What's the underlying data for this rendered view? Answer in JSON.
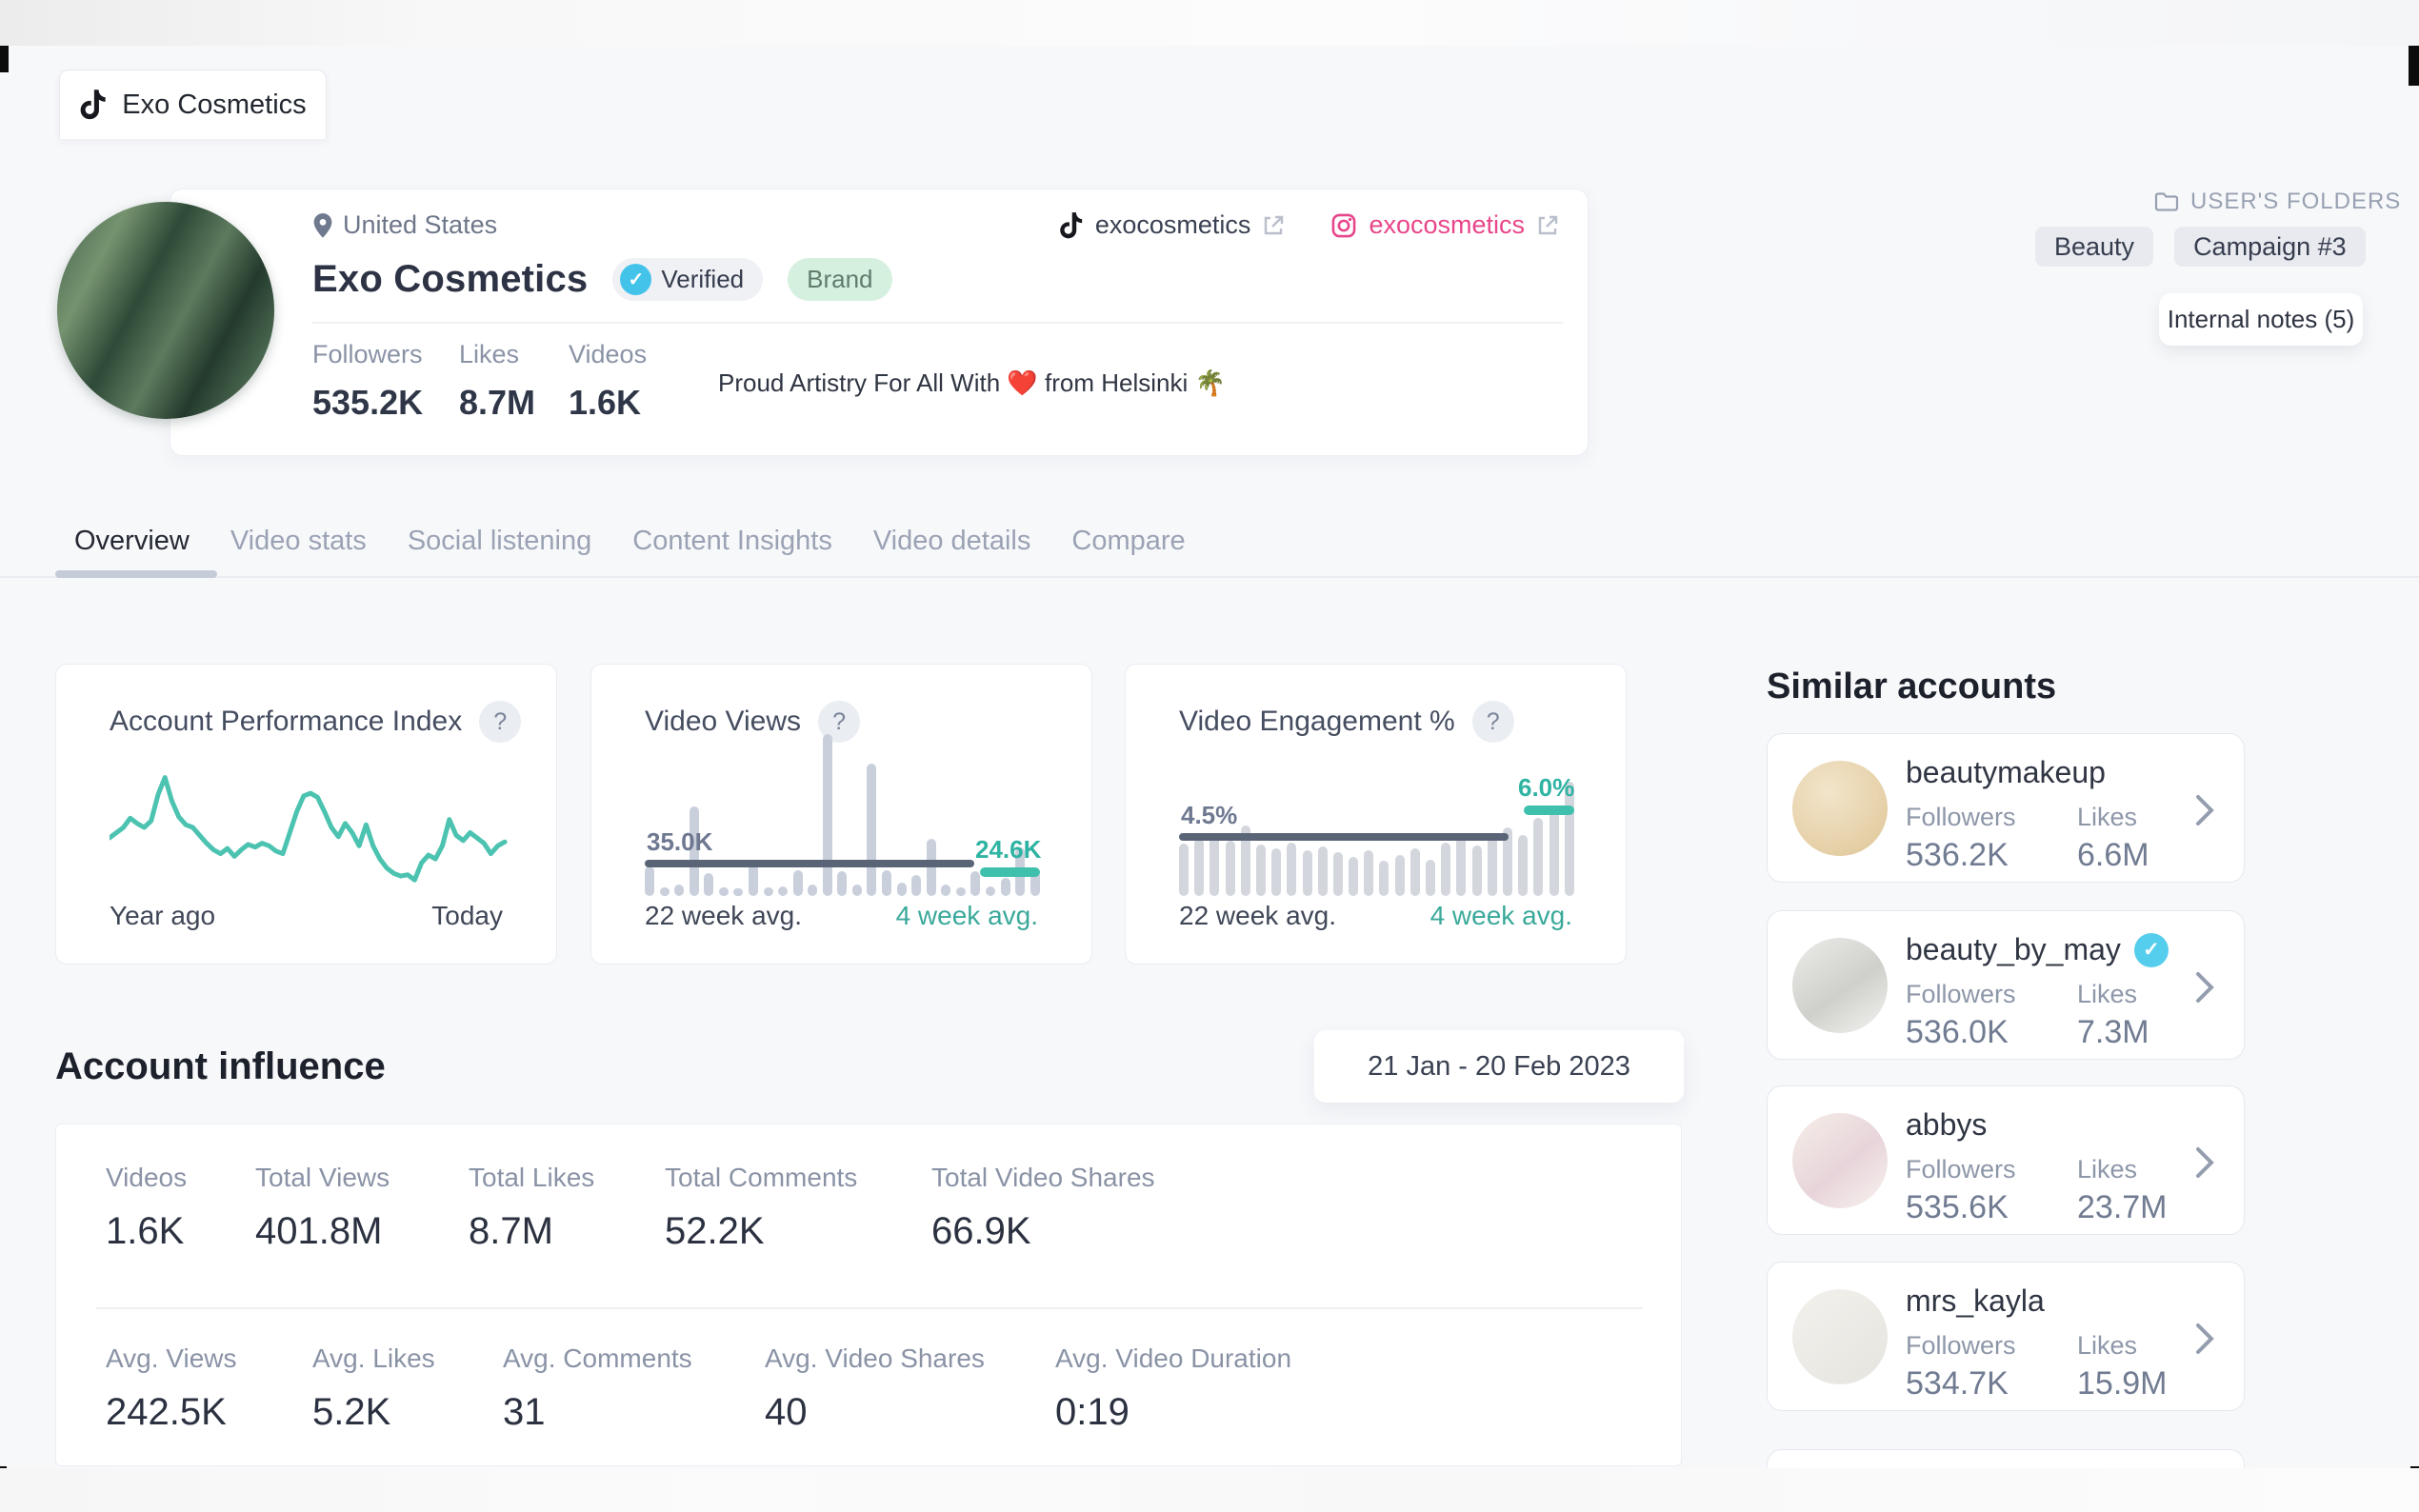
{
  "window": {
    "tab_title": "Exo Cosmetics"
  },
  "profile": {
    "location": "United States",
    "name": "Exo Cosmetics",
    "verified_label": "Verified",
    "brand_label": "Brand",
    "stats": [
      {
        "label": "Followers",
        "value": "535.2K"
      },
      {
        "label": "Likes",
        "value": "8.7M"
      },
      {
        "label": "Videos",
        "value": "1.6K"
      }
    ],
    "bio": "Proud Artistry For All With ❤️ from Helsinki 🌴",
    "links": [
      {
        "platform": "tiktok",
        "handle": "exocosmetics"
      },
      {
        "platform": "instagram",
        "handle": "exocosmetics"
      }
    ]
  },
  "folders": {
    "label": "USER'S FOLDERS",
    "chips": [
      "Beauty",
      "Campaign #3"
    ],
    "notes_label": "Internal notes (5)"
  },
  "tabs": [
    {
      "label": "Overview"
    },
    {
      "label": "Video stats"
    },
    {
      "label": "Social listening"
    },
    {
      "label": "Content Insights"
    },
    {
      "label": "Video details"
    },
    {
      "label": "Compare"
    }
  ],
  "help_glyph": "?",
  "charts": {
    "performance": {
      "type": "line",
      "title": "Account Performance Index",
      "x_start_label": "Year ago",
      "x_end_label": "Today",
      "line_color": "#4cc3b0",
      "points": [
        42,
        46,
        50,
        57,
        53,
        50,
        55,
        75,
        88,
        70,
        58,
        52,
        50,
        44,
        38,
        33,
        30,
        34,
        28,
        33,
        37,
        35,
        38,
        36,
        32,
        30,
        46,
        62,
        74,
        76,
        73,
        62,
        50,
        43,
        53,
        46,
        36,
        52,
        36,
        26,
        19,
        15,
        13,
        14,
        10,
        23,
        29,
        26,
        36,
        56,
        44,
        40,
        46,
        42,
        38,
        30,
        36,
        39
      ]
    },
    "video_views": {
      "type": "bar",
      "title": "Video Views",
      "avg22_label": "22 week avg.",
      "avg22_value": "35.0K",
      "avg4_label": "4 week avg.",
      "avg4_value": "24.6K",
      "bars": [
        18,
        5,
        7,
        55,
        14,
        5,
        4,
        20,
        5,
        6,
        16,
        7,
        100,
        15,
        7,
        82,
        16,
        8,
        13,
        35,
        7,
        5,
        15,
        6,
        11,
        30,
        15
      ]
    },
    "engagement": {
      "type": "bar",
      "title": "Video Engagement %",
      "avg22_label": "22 week avg.",
      "avg22_value": "4.5%",
      "avg4_label": "4 week avg.",
      "avg4_value": "6.0%",
      "bars": [
        46,
        50,
        54,
        48,
        62,
        45,
        42,
        47,
        40,
        43,
        38,
        34,
        40,
        31,
        36,
        42,
        32,
        47,
        52,
        44,
        55,
        60,
        53,
        68,
        76,
        100
      ]
    }
  },
  "similar_accounts": {
    "title": "Similar accounts",
    "followers_label": "Followers",
    "likes_label": "Likes",
    "accounts": [
      {
        "name": "beautymakeup",
        "followers": "536.2K",
        "likes": "6.6M"
      },
      {
        "name": "beauty_by_may",
        "followers": "536.0K",
        "likes": "7.3M"
      },
      {
        "name": "abbys",
        "followers": "535.6K",
        "likes": "23.7M"
      },
      {
        "name": "mrs_kayla",
        "followers": "534.7K",
        "likes": "15.9M"
      }
    ]
  },
  "influence": {
    "title": "Account influence",
    "date_range": "21 Jan - 20 Feb 2023",
    "row1": [
      {
        "label": "Videos",
        "value": "1.6K"
      },
      {
        "label": "Total Views",
        "value": "401.8M"
      },
      {
        "label": "Total Likes",
        "value": "8.7M"
      },
      {
        "label": "Total Comments",
        "value": "52.2K"
      },
      {
        "label": "Total Video Shares",
        "value": "66.9K"
      }
    ],
    "row2": [
      {
        "label": "Avg. Views",
        "value": "242.5K"
      },
      {
        "label": "Avg. Likes",
        "value": "5.2K"
      },
      {
        "label": "Avg. Comments",
        "value": "31"
      },
      {
        "label": "Avg. Video Shares",
        "value": "40"
      },
      {
        "label": "Avg. Video Duration",
        "value": "0:19"
      }
    ]
  }
}
